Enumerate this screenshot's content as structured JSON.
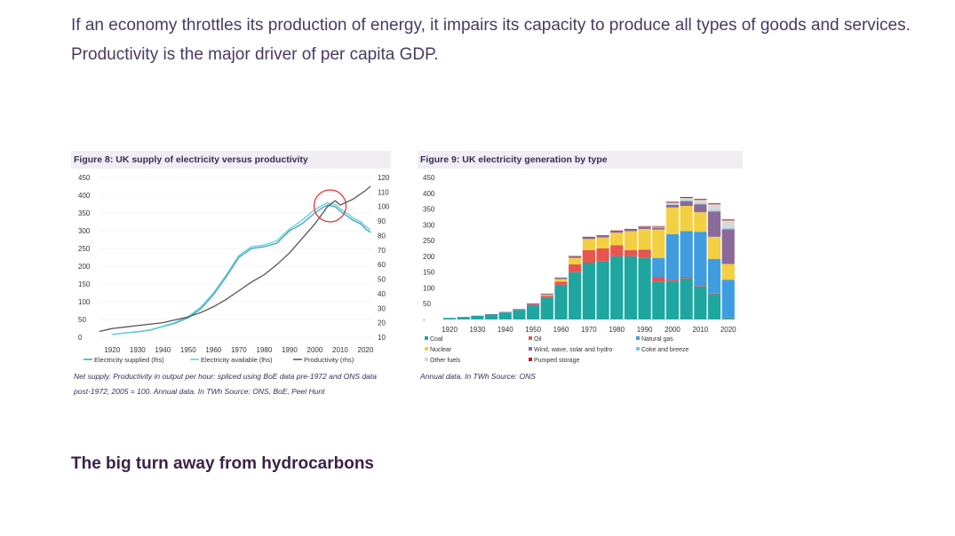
{
  "intro": {
    "line1": "If an economy throttles its production of energy, it impairs its capacity to produce all types of goods and services.",
    "line2": "Productivity is the major driver of per capita GDP."
  },
  "figure8": {
    "title": "Figure 8: UK supply of electricity versus productivity",
    "note": "Net supply. Productivity in output per hour: spliced using BoE data pre-1972 and ONS data post-1972, 2005 = 100. Annual data. In TWh Source: ONS, BoE, Peel Hunt",
    "colors": {
      "supplied": "#3aa0c8",
      "available": "#5fd0d8",
      "productivity": "#555555",
      "highlight": "#e03030"
    }
  },
  "figure9": {
    "title": "Figure 9: UK electricity generation by type",
    "note": "Annual data. In TWh Source: ONS",
    "colors": {
      "Coal": "#1fa6a0",
      "Oil": "#e8554e",
      "Natural gas": "#3f9ddf",
      "Nuclear": "#f3cf43",
      "Wind, wave, solar and hydro": "#8a6a9a",
      "Coke and breeze": "#7cc7e0",
      "Other fuels": "#d8d8d8",
      "Pumped storage": "#b32020"
    }
  },
  "heading": "The big turn away from hydrocarbons",
  "chart_data": [
    {
      "type": "line",
      "title": "Figure 8: UK supply of electricity versus productivity",
      "x_ticks": [
        "1920",
        "1930",
        "1940",
        "1950",
        "1960",
        "1970",
        "1980",
        "1990",
        "2000",
        "2010",
        "2020"
      ],
      "y_left_ticks": [
        "450",
        "400",
        "350",
        "300",
        "250",
        "200",
        "150",
        "100",
        "50",
        "0"
      ],
      "y_right_ticks": [
        "120",
        "110",
        "100",
        "90",
        "80",
        "70",
        "60",
        "50",
        "40",
        "30",
        "20",
        "10"
      ],
      "ylim_left": [
        0,
        450
      ],
      "ylim_right": [
        10,
        120
      ],
      "xlim": [
        1915,
        2023
      ],
      "legend": [
        "Electricity supplied (lhs)",
        "Electricity available (lhs)",
        "Productivity (rhs)"
      ],
      "series": [
        {
          "name": "Electricity supplied (lhs)",
          "axis": "left",
          "x": [
            1920,
            1925,
            1930,
            1935,
            1940,
            1945,
            1950,
            1955,
            1960,
            1965,
            1970,
            1975,
            1980,
            1985,
            1990,
            1995,
            2000,
            2003,
            2005,
            2008,
            2010,
            2013,
            2015,
            2018,
            2020,
            2022
          ],
          "values": [
            8,
            12,
            15,
            20,
            30,
            40,
            55,
            80,
            120,
            170,
            225,
            250,
            255,
            265,
            300,
            320,
            350,
            365,
            372,
            368,
            355,
            340,
            330,
            320,
            305,
            295
          ]
        },
        {
          "name": "Electricity available (lhs)",
          "axis": "left",
          "x": [
            1920,
            1925,
            1930,
            1935,
            1940,
            1945,
            1950,
            1955,
            1960,
            1965,
            1970,
            1975,
            1980,
            1985,
            1990,
            1995,
            2000,
            2003,
            2005,
            2008,
            2010,
            2013,
            2015,
            2018,
            2020,
            2022
          ],
          "values": [
            8,
            12,
            16,
            21,
            31,
            42,
            58,
            85,
            125,
            175,
            230,
            255,
            260,
            272,
            305,
            330,
            360,
            372,
            378,
            374,
            362,
            348,
            336,
            326,
            312,
            302
          ]
        },
        {
          "name": "Productivity (rhs)",
          "axis": "right",
          "x": [
            1915,
            1920,
            1925,
            1930,
            1935,
            1940,
            1945,
            1950,
            1955,
            1960,
            1965,
            1970,
            1975,
            1980,
            1985,
            1990,
            1995,
            2000,
            2005,
            2008,
            2010,
            2015,
            2020,
            2022
          ],
          "values": [
            14,
            16,
            17,
            18,
            19,
            20,
            22,
            24,
            27,
            31,
            36,
            42,
            48,
            53,
            60,
            68,
            78,
            88,
            100,
            104,
            101,
            105,
            111,
            114
          ]
        }
      ],
      "annotation": "circle at 2005-2008 peak"
    },
    {
      "type": "stacked-bar",
      "title": "Figure 9: UK electricity generation by type",
      "categories": [
        "1920",
        "1925",
        "1930",
        "1935",
        "1940",
        "1945",
        "1950",
        "1955",
        "1960",
        "1965",
        "1970",
        "1975",
        "1980",
        "1985",
        "1990",
        "1995",
        "2000",
        "2005",
        "2010",
        "2015",
        "2020"
      ],
      "x_ticks": [
        "1920",
        "1930",
        "1940",
        "1950",
        "1960",
        "1970",
        "1980",
        "1990",
        "2000",
        "2010",
        "2020"
      ],
      "y_ticks": [
        "450",
        "400",
        "350",
        "300",
        "250",
        "200",
        "150",
        "100",
        "50",
        "-"
      ],
      "ylim": [
        0,
        450
      ],
      "series": [
        {
          "name": "Coal",
          "values": [
            5,
            8,
            12,
            16,
            22,
            30,
            45,
            70,
            110,
            150,
            180,
            185,
            200,
            200,
            195,
            120,
            120,
            130,
            105,
            80,
            5
          ]
        },
        {
          "name": "Oil",
          "values": [
            0,
            0,
            0,
            0,
            0,
            0,
            2,
            5,
            10,
            25,
            40,
            40,
            35,
            20,
            25,
            15,
            5,
            5,
            3,
            2,
            1
          ]
        },
        {
          "name": "Natural gas",
          "values": [
            0,
            0,
            0,
            0,
            0,
            0,
            0,
            0,
            0,
            0,
            0,
            0,
            0,
            0,
            2,
            60,
            145,
            145,
            170,
            110,
            120
          ]
        },
        {
          "name": "Nuclear",
          "values": [
            0,
            0,
            0,
            0,
            0,
            0,
            0,
            3,
            8,
            20,
            35,
            35,
            40,
            60,
            65,
            90,
            85,
            80,
            62,
            70,
            50
          ]
        },
        {
          "name": "Wind, wave, solar and hydro",
          "values": [
            0,
            0,
            0,
            1,
            2,
            3,
            4,
            4,
            5,
            5,
            5,
            5,
            5,
            5,
            6,
            6,
            8,
            15,
            25,
            80,
            110
          ]
        },
        {
          "name": "Coke and breeze",
          "values": [
            0,
            0,
            0,
            0,
            0,
            0,
            0,
            0,
            0,
            0,
            0,
            0,
            0,
            0,
            0,
            0,
            2,
            2,
            2,
            3,
            3
          ]
        },
        {
          "name": "Other fuels",
          "values": [
            0,
            0,
            0,
            0,
            0,
            0,
            0,
            0,
            0,
            0,
            0,
            0,
            0,
            0,
            1,
            3,
            5,
            8,
            12,
            20,
            25
          ]
        },
        {
          "name": "Pumped storage",
          "values": [
            0,
            0,
            0,
            0,
            0,
            0,
            0,
            0,
            0,
            1,
            2,
            2,
            2,
            2,
            2,
            2,
            3,
            3,
            3,
            3,
            3
          ]
        }
      ],
      "legend": [
        "Coal",
        "Oil",
        "Natural gas",
        "Nuclear",
        "Wind, wave, solar and hydro",
        "Coke and breeze",
        "Other fuels",
        "Pumped storage"
      ]
    }
  ]
}
